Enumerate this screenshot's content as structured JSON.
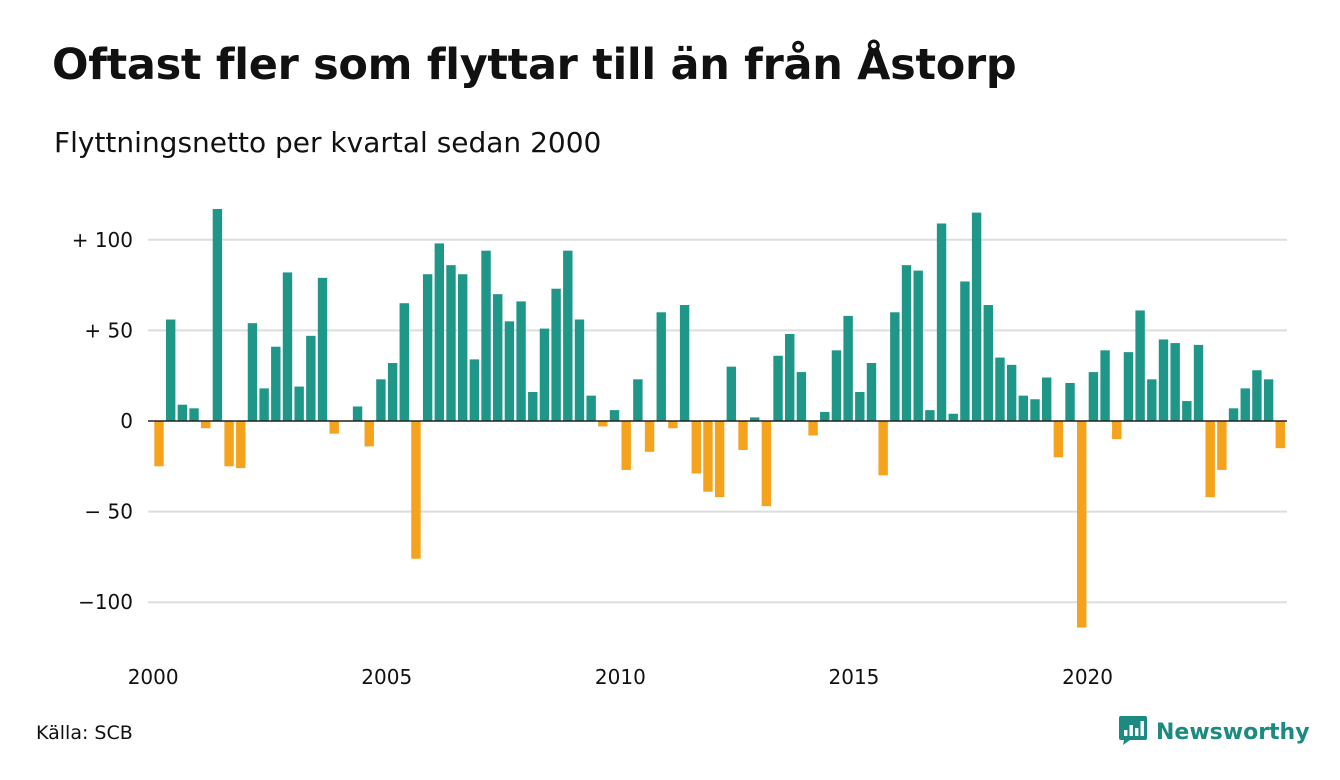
{
  "title": "Oftast fler som flyttar till än från Åstorp",
  "subtitle": "Flyttningsnetto per kvartal sedan 2000",
  "source": "Källa: SCB",
  "brand": {
    "name": "Newsworthy",
    "icon": "newsworthy-logo-icon"
  },
  "colors": {
    "positive": "#1e9688",
    "negative": "#f5a21c",
    "grid": "#dddddd",
    "zero_line": "#222222"
  },
  "chart_data": {
    "type": "bar",
    "title": "Oftast fler som flyttar till än från Åstorp",
    "subtitle": "Flyttningsnetto per kvartal sedan 2000",
    "xlabel": "",
    "ylabel": "",
    "x_start": "2000 Q1",
    "frequency": "quarterly",
    "ylim": [
      -120,
      120
    ],
    "yticks": [
      {
        "value": 100,
        "label": "+ 100"
      },
      {
        "value": 50,
        "label": "+  50"
      },
      {
        "value": 0,
        "label": "0"
      },
      {
        "value": -50,
        "label": "− 50"
      },
      {
        "value": -100,
        "label": "−100"
      }
    ],
    "xticks": [
      {
        "year": 2000,
        "label": "2000"
      },
      {
        "year": 2005,
        "label": "2005"
      },
      {
        "year": 2010,
        "label": "2010"
      },
      {
        "year": 2015,
        "label": "2015"
      },
      {
        "year": 2020,
        "label": "2020"
      }
    ],
    "grid": true,
    "legend": "none",
    "values": [
      -25,
      56,
      9,
      7,
      -4,
      117,
      -25,
      -26,
      54,
      18,
      41,
      82,
      19,
      47,
      79,
      -7,
      0,
      8,
      -14,
      23,
      32,
      65,
      -76,
      81,
      98,
      86,
      81,
      34,
      94,
      70,
      55,
      66,
      16,
      51,
      73,
      94,
      56,
      14,
      -3,
      6,
      -27,
      23,
      -17,
      60,
      -4,
      64,
      -29,
      -39,
      -42,
      30,
      -16,
      2,
      -47,
      36,
      48,
      27,
      -8,
      5,
      39,
      58,
      16,
      32,
      -30,
      60,
      86,
      83,
      6,
      109,
      4,
      77,
      115,
      64,
      35,
      31,
      14,
      12,
      24,
      -20,
      21,
      -114,
      27,
      39,
      -10,
      38,
      61,
      23,
      45,
      43,
      11,
      42,
      -42,
      -27,
      7,
      18,
      28,
      23,
      -15
    ]
  }
}
